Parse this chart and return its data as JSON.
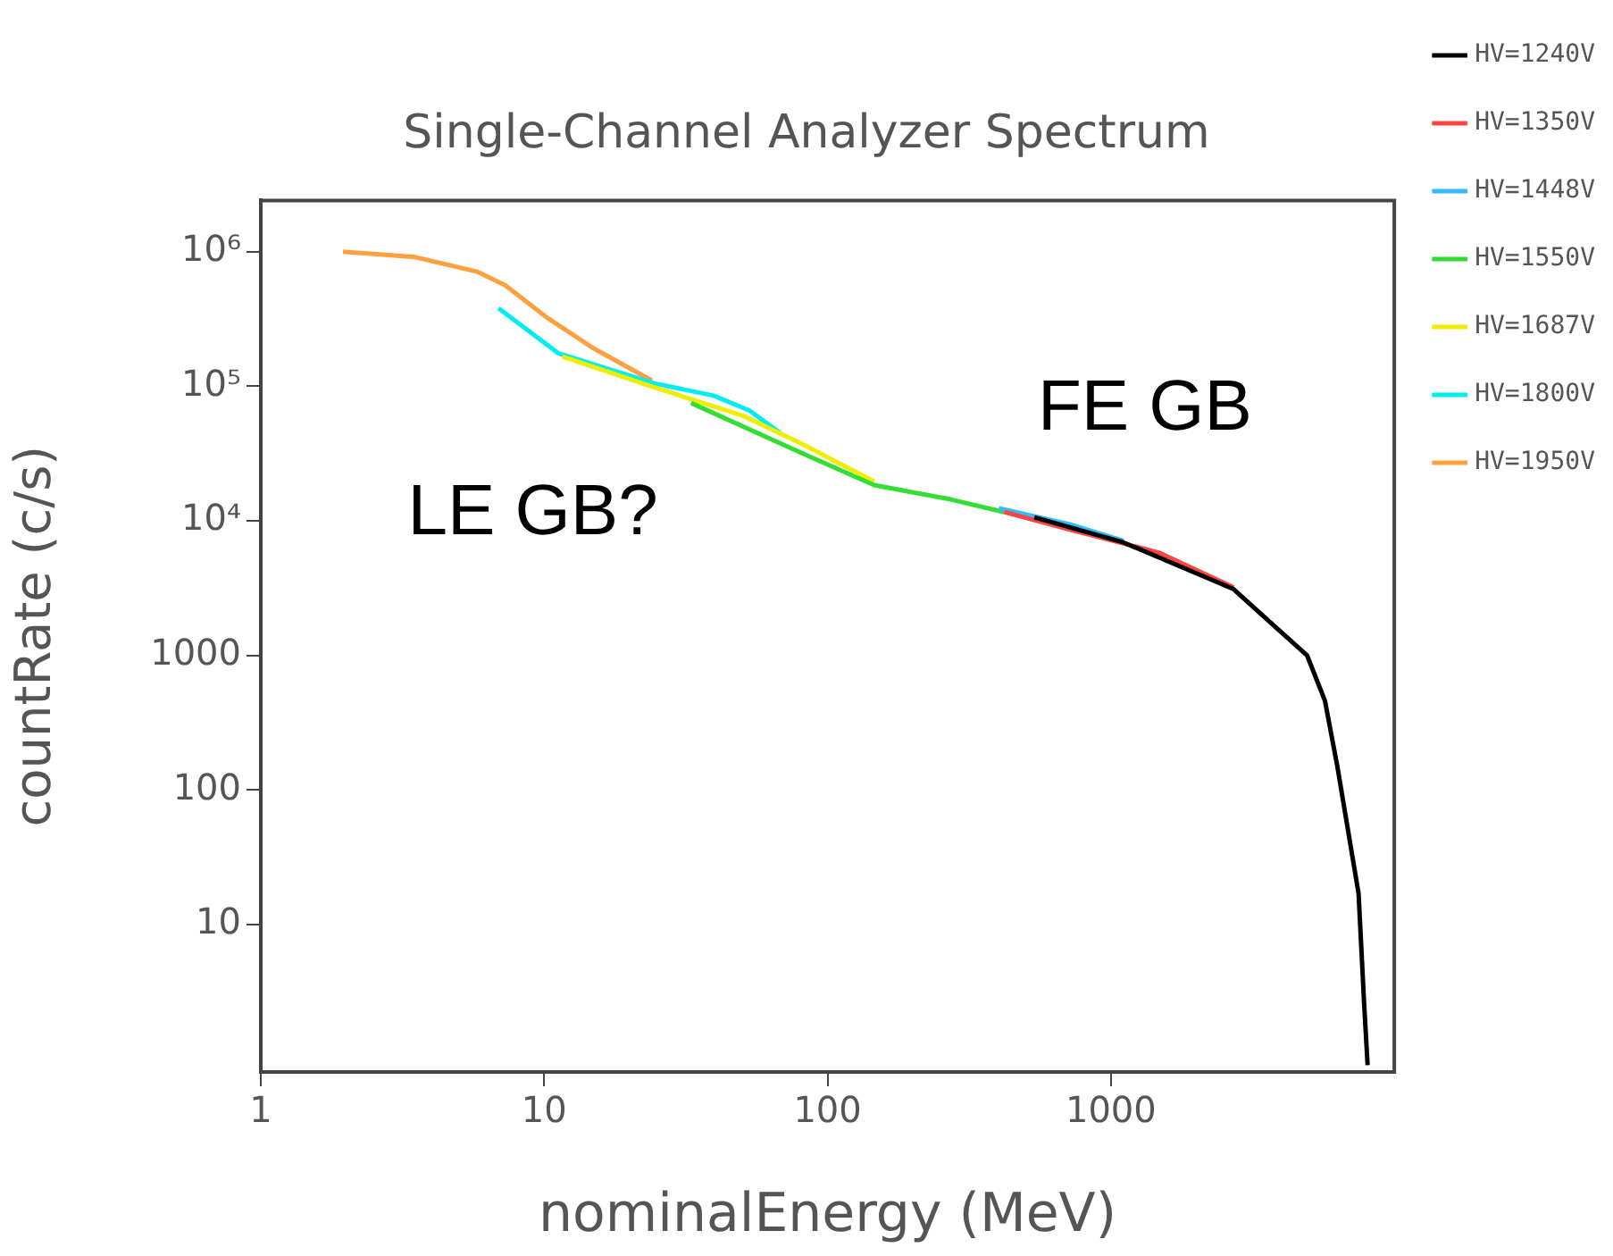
{
  "chart_data": {
    "type": "line",
    "title": "Single-Channel Analyzer Spectrum",
    "xlabel": "nominalEnergy (MeV)",
    "ylabel": "countRate (c/s)",
    "log": "xy",
    "xlim": [
      1,
      10000
    ],
    "ylim": [
      0.8,
      2400000
    ],
    "xticks": [
      1,
      10,
      100,
      1000
    ],
    "yticks": [
      10,
      100,
      1000,
      {
        "value": 10000,
        "label": "10⁴"
      },
      {
        "value": 100000,
        "label": "10⁵"
      },
      {
        "value": 1000000,
        "label": "10⁶"
      }
    ],
    "grid": false,
    "legend": "right",
    "marker": "none",
    "line_style": "solid",
    "annotations": [
      "LE GB?",
      "FE GB"
    ],
    "series": [
      {
        "name": "HV=1240V",
        "color": "#000000",
        "x": [
          537,
          1107,
          2710,
          3900,
          4920,
          5690,
          6300,
          7480,
          7820,
          8050
        ],
        "values": [
          10600,
          6900,
          3100,
          1550,
          1000,
          460,
          148,
          17,
          2.65,
          0.9
        ]
      },
      {
        "name": "HV=1350V",
        "color": "#ff4444",
        "x": [
          420,
          716,
          1475,
          2710
        ],
        "values": [
          11600,
          8600,
          5800,
          3200
        ]
      },
      {
        "name": "HV=1448V",
        "color": "#33bbff",
        "x": [
          402,
          716,
          1107
        ],
        "values": [
          12400,
          9400,
          7100
        ]
      },
      {
        "name": "HV=1550V",
        "color": "#33dd33",
        "x": [
          33,
          78,
          146,
          272,
          420
        ],
        "values": [
          75000,
          33000,
          18400,
          14400,
          11600
        ]
      },
      {
        "name": "HV=1687V",
        "color": "#eeee00",
        "x": [
          11.6,
          24.5,
          50.6,
          81.6,
          146
        ],
        "values": [
          166000,
          98000,
          60000,
          37000,
          19600
        ]
      },
      {
        "name": "HV=1800V",
        "color": "#00eeee",
        "x": [
          6.9,
          11.2,
          24.5,
          39.6,
          53,
          68
        ],
        "values": [
          380000,
          176000,
          105000,
          85000,
          66000,
          45000
        ]
      },
      {
        "name": "HV=1950V",
        "color": "#ffa040",
        "x": [
          1.95,
          3.5,
          5.8,
          7.3,
          10.3,
          15,
          24
        ],
        "values": [
          1000000,
          910000,
          710000,
          560000,
          320000,
          190000,
          110000
        ]
      }
    ]
  }
}
